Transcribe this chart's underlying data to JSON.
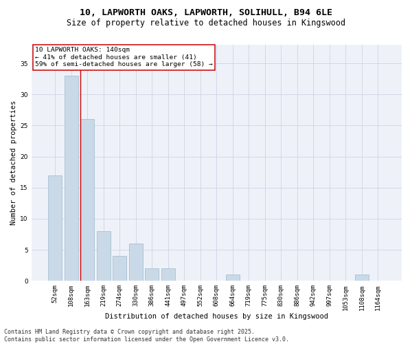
{
  "title1": "10, LAPWORTH OAKS, LAPWORTH, SOLIHULL, B94 6LE",
  "title2": "Size of property relative to detached houses in Kingswood",
  "xlabel": "Distribution of detached houses by size in Kingswood",
  "ylabel": "Number of detached properties",
  "categories": [
    "52sqm",
    "108sqm",
    "163sqm",
    "219sqm",
    "274sqm",
    "330sqm",
    "386sqm",
    "441sqm",
    "497sqm",
    "552sqm",
    "608sqm",
    "664sqm",
    "719sqm",
    "775sqm",
    "830sqm",
    "886sqm",
    "942sqm",
    "997sqm",
    "1053sqm",
    "1108sqm",
    "1164sqm"
  ],
  "values": [
    17,
    33,
    26,
    8,
    4,
    6,
    2,
    2,
    0,
    0,
    0,
    1,
    0,
    0,
    0,
    0,
    0,
    0,
    0,
    1,
    0
  ],
  "bar_color": "#c9d9e8",
  "bar_edge_color": "#a8bfd0",
  "vline_color": "#cc0000",
  "vline_pos": 1.57,
  "annotation_text": "10 LAPWORTH OAKS: 140sqm\n← 41% of detached houses are smaller (41)\n59% of semi-detached houses are larger (58) →",
  "annotation_box_color": "white",
  "annotation_box_edge": "#cc0000",
  "ylim": [
    0,
    38
  ],
  "yticks": [
    0,
    5,
    10,
    15,
    20,
    25,
    30,
    35
  ],
  "grid_color": "#d0d8e8",
  "background_color": "#eef2f8",
  "footer": "Contains HM Land Registry data © Crown copyright and database right 2025.\nContains public sector information licensed under the Open Government Licence v3.0.",
  "title_fontsize": 9.5,
  "subtitle_fontsize": 8.5,
  "axis_label_fontsize": 7.5,
  "tick_fontsize": 6.5,
  "annotation_fontsize": 6.8,
  "footer_fontsize": 6.0
}
